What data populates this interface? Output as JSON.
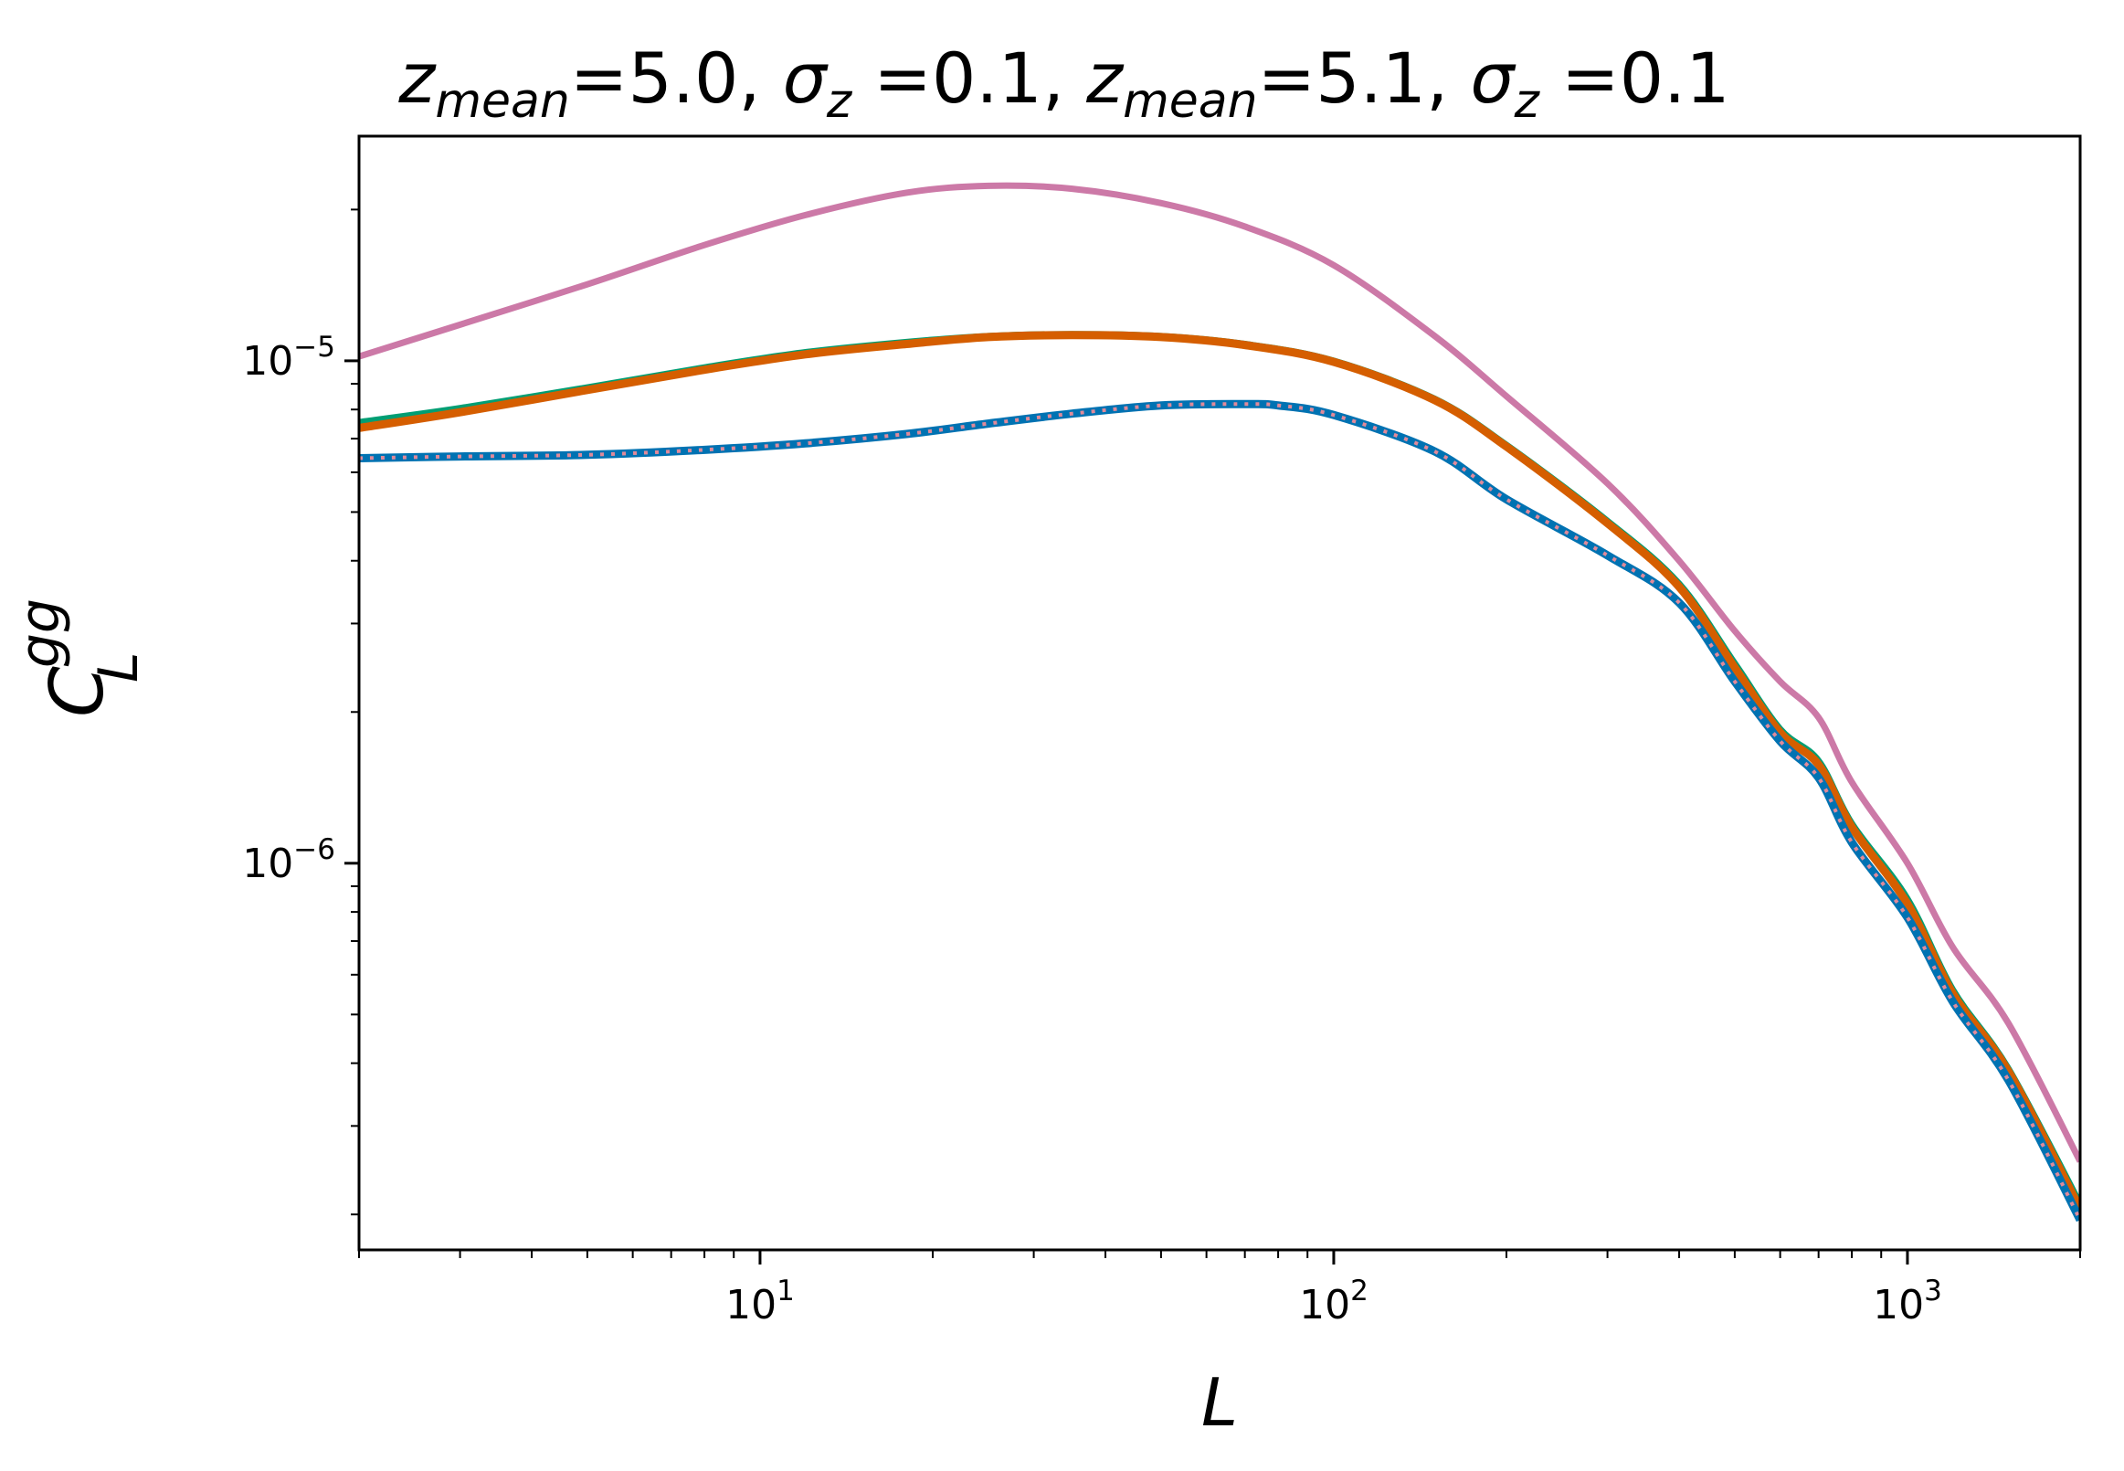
{
  "chart_data": {
    "type": "line",
    "title": {
      "parts": [
        {
          "sym": "z",
          "sub": "mean",
          "rest": "=5.0, "
        },
        {
          "sym": "σ",
          "sub": "z",
          "rest": " =0.1, "
        },
        {
          "sym": "z",
          "sub": "mean",
          "rest": "=5.1, "
        },
        {
          "sym": "σ",
          "sub": "z",
          "rest": " =0.1"
        }
      ]
    },
    "xlabel": "L",
    "ylabel": {
      "sym": "C",
      "sub": "L",
      "sup": "gg"
    },
    "xscale": "log",
    "yscale": "log",
    "xlim": [
      2,
      2000
    ],
    "ylim": [
      1.7e-07,
      2.8e-05
    ],
    "x_major_ticks": [
      {
        "value": 10,
        "base": "10",
        "exp": "1"
      },
      {
        "value": 100,
        "base": "10",
        "exp": "2"
      },
      {
        "value": 1000,
        "base": "10",
        "exp": "3"
      }
    ],
    "y_major_ticks": [
      {
        "value": 1e-06,
        "base": "10",
        "exp": "−6"
      },
      {
        "value": 1e-05,
        "base": "10",
        "exp": "−5"
      }
    ],
    "legend": "none",
    "grid": false,
    "series": [
      {
        "name": "auto-pink",
        "color": "#cc79a7",
        "width": 7,
        "dash": "",
        "x": [
          2,
          3,
          5,
          8,
          12,
          18,
          25,
          35,
          50,
          70,
          100,
          150,
          200,
          300,
          400,
          500,
          600,
          700,
          800,
          1000,
          1200,
          1500,
          2000
        ],
        "y": [
          1.02e-05,
          1.18e-05,
          1.42e-05,
          1.7e-05,
          1.95e-05,
          2.16e-05,
          2.23e-05,
          2.2e-05,
          2.06e-05,
          1.85e-05,
          1.55e-05,
          1.12e-05,
          8.5e-06,
          5.7e-06,
          4e-06,
          2.9e-06,
          2.3e-06,
          1.95e-06,
          1.45e-06,
          1e-06,
          6.8e-07,
          4.8e-07,
          2.55e-07
        ]
      },
      {
        "name": "cross-green",
        "color": "#009e73",
        "width": 7,
        "dash": "",
        "x": [
          2,
          3,
          5,
          8,
          12,
          18,
          25,
          35,
          50,
          70,
          100,
          150,
          200,
          300,
          400,
          500,
          600,
          700,
          800,
          1000,
          1200,
          1500,
          2000
        ],
        "y": [
          7.55e-06,
          8.05e-06,
          8.85e-06,
          9.7e-06,
          1.04e-05,
          1.09e-05,
          1.12e-05,
          1.13e-05,
          1.12e-05,
          1.08e-05,
          1e-05,
          8.4e-06,
          6.8e-06,
          4.8e-06,
          3.6e-06,
          2.5e-06,
          1.85e-06,
          1.6e-06,
          1.2e-06,
          8.5e-07,
          5.6e-07,
          3.9e-07,
          2.1e-07
        ]
      },
      {
        "name": "cross-orange",
        "color": "#d55e00",
        "width": 9,
        "dash": "",
        "x": [
          2,
          3,
          5,
          8,
          12,
          18,
          25,
          35,
          50,
          70,
          100,
          150,
          200,
          300,
          400,
          500,
          600,
          700,
          800,
          1000,
          1200,
          1500,
          2000
        ],
        "y": [
          7.35e-06,
          7.9e-06,
          8.75e-06,
          9.6e-06,
          1.03e-05,
          1.08e-05,
          1.115e-05,
          1.125e-05,
          1.115e-05,
          1.075e-05,
          9.95e-06,
          8.35e-06,
          6.75e-06,
          4.75e-06,
          3.55e-06,
          2.45e-06,
          1.82e-06,
          1.57e-06,
          1.18e-06,
          8.3e-07,
          5.5e-07,
          3.85e-07,
          2.05e-07
        ]
      },
      {
        "name": "auto-blue",
        "color": "#0072b2",
        "width": 9,
        "dash": "",
        "x": [
          2,
          3,
          5,
          8,
          12,
          18,
          25,
          35,
          50,
          70,
          80,
          100,
          150,
          200,
          300,
          400,
          500,
          600,
          700,
          800,
          1000,
          1200,
          1500,
          2000
        ],
        "y": [
          6.4e-06,
          6.45e-06,
          6.5e-06,
          6.65e-06,
          6.85e-06,
          7.15e-06,
          7.5e-06,
          7.85e-06,
          8.15e-06,
          8.2e-06,
          8.15e-06,
          7.8e-06,
          6.6e-06,
          5.3e-06,
          4.1e-06,
          3.3e-06,
          2.3e-06,
          1.75e-06,
          1.48e-06,
          1.1e-06,
          7.8e-07,
          5.3e-07,
          3.7e-07,
          1.95e-07
        ]
      },
      {
        "name": "model-dotted",
        "color": "#e08a9a",
        "width": 4,
        "dash": "4,8",
        "x": [
          2,
          3,
          5,
          8,
          12,
          18,
          25,
          35,
          50,
          70,
          80,
          100,
          150,
          200,
          300,
          400,
          500,
          600,
          700,
          800,
          1000,
          1200,
          1500,
          2000
        ],
        "y": [
          6.4e-06,
          6.45e-06,
          6.5e-06,
          6.65e-06,
          6.85e-06,
          7.15e-06,
          7.5e-06,
          7.85e-06,
          8.15e-06,
          8.2e-06,
          8.15e-06,
          7.8e-06,
          6.6e-06,
          5.3e-06,
          4.1e-06,
          3.3e-06,
          2.3e-06,
          1.75e-06,
          1.48e-06,
          1.1e-06,
          7.8e-07,
          5.3e-07,
          3.7e-07,
          1.95e-07
        ]
      }
    ]
  }
}
